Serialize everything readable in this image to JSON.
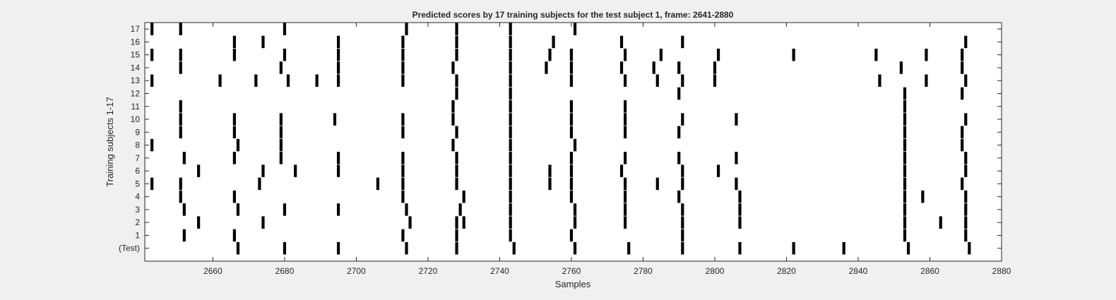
{
  "chart_data": {
    "type": "heatmap",
    "title": "Predicted scores by 17 training subjects for the test subject 1, frame: 2641-2880",
    "xlabel": "Samples",
    "ylabel": "Training subjects 1-17",
    "xlim": [
      2641,
      2880
    ],
    "x_ticks": [
      2660,
      2680,
      2700,
      2720,
      2740,
      2760,
      2780,
      2800,
      2820,
      2840,
      2860,
      2880
    ],
    "y_tick_labels": [
      "(Test)",
      "1",
      "2",
      "3",
      "4",
      "5",
      "6",
      "7",
      "8",
      "9",
      "10",
      "11",
      "12",
      "13",
      "14",
      "15",
      "16",
      "17"
    ],
    "grid": false,
    "colors": {
      "mark": "#000000",
      "plot_bg": "#ffffff",
      "figure_bg": "#f0f0f0"
    },
    "rows": [
      {
        "label": "(Test)",
        "x": [
          2667,
          2680,
          2695,
          2714,
          2728,
          2744,
          2761,
          2776,
          2791,
          2807,
          2822,
          2836,
          2854,
          2871
        ]
      },
      {
        "label": "1",
        "x": [
          2652,
          2666,
          2713,
          2728,
          2743,
          2760,
          2791,
          2853,
          2870
        ]
      },
      {
        "label": "2",
        "x": [
          2656,
          2674,
          2715,
          2728,
          2730,
          2743,
          2761,
          2775,
          2791,
          2807,
          2853,
          2863,
          2870
        ]
      },
      {
        "label": "3",
        "x": [
          2652,
          2667,
          2680,
          2695,
          2714,
          2729,
          2743,
          2761,
          2775,
          2791,
          2807,
          2853,
          2870
        ]
      },
      {
        "label": "4",
        "x": [
          2651,
          2666,
          2713,
          2730,
          2743,
          2760,
          2775,
          2790,
          2807,
          2853,
          2858,
          2870
        ]
      },
      {
        "label": "5",
        "x": [
          2643,
          2651,
          2673,
          2706,
          2713,
          2728,
          2743,
          2754,
          2760,
          2775,
          2784,
          2791,
          2806,
          2853,
          2869
        ]
      },
      {
        "label": "6",
        "x": [
          2656,
          2674,
          2683,
          2695,
          2713,
          2728,
          2743,
          2754,
          2760,
          2774,
          2791,
          2801,
          2853,
          2870
        ]
      },
      {
        "label": "7",
        "x": [
          2652,
          2666,
          2679,
          2695,
          2713,
          2728,
          2743,
          2760,
          2775,
          2790,
          2806,
          2853,
          2870
        ]
      },
      {
        "label": "8",
        "x": [
          2643,
          2667,
          2679,
          2727,
          2743,
          2761,
          2853,
          2869
        ]
      },
      {
        "label": "9",
        "x": [
          2651,
          2666,
          2679,
          2713,
          2728,
          2743,
          2760,
          2775,
          2790,
          2853,
          2869
        ]
      },
      {
        "label": "10",
        "x": [
          2651,
          2666,
          2679,
          2694,
          2713,
          2727,
          2743,
          2760,
          2775,
          2791,
          2806,
          2853,
          2870
        ]
      },
      {
        "label": "11",
        "x": [
          2651,
          2727,
          2743,
          2760,
          2775,
          2853
        ]
      },
      {
        "label": "12",
        "x": [
          2728,
          2743,
          2790,
          2853,
          2869
        ]
      },
      {
        "label": "13",
        "x": [
          2643,
          2662,
          2672,
          2681,
          2689,
          2695,
          2713,
          2728,
          2743,
          2760,
          2775,
          2784,
          2791,
          2800,
          2846,
          2859,
          2870
        ]
      },
      {
        "label": "14",
        "x": [
          2651,
          2679,
          2695,
          2713,
          2727,
          2743,
          2753,
          2760,
          2774,
          2783,
          2790,
          2800,
          2852,
          2869
        ]
      },
      {
        "label": "15",
        "x": [
          2643,
          2651,
          2666,
          2680,
          2695,
          2713,
          2728,
          2743,
          2754,
          2760,
          2775,
          2785,
          2801,
          2822,
          2845,
          2859,
          2869
        ]
      },
      {
        "label": "16",
        "x": [
          2666,
          2674,
          2695,
          2713,
          2728,
          2743,
          2755,
          2774,
          2791,
          2870
        ]
      },
      {
        "label": "17",
        "x": [
          2643,
          2651,
          2680,
          2714,
          2728,
          2743,
          2761
        ]
      }
    ]
  }
}
